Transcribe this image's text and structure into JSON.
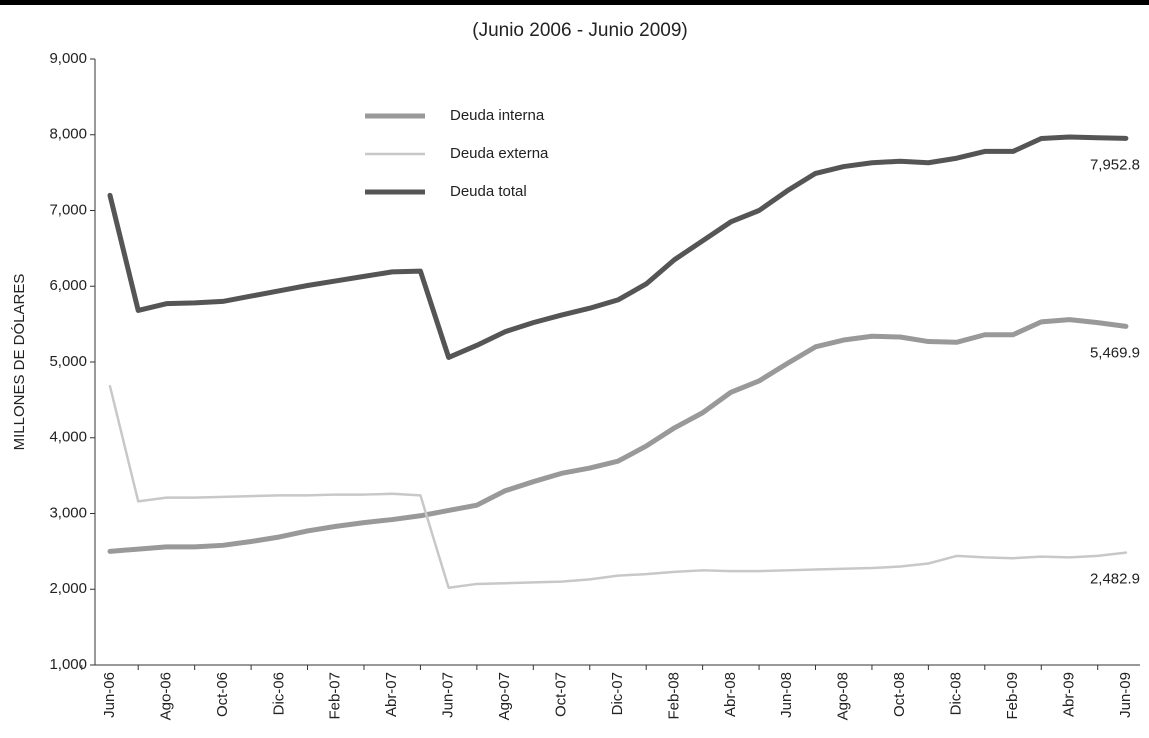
{
  "chart_data": {
    "type": "line",
    "subtitle": "(Junio 2006 - Junio 2009)",
    "y_label": "MILLONES DE DÓLARES",
    "categories": [
      "Jun-06",
      null,
      "Ago-06",
      null,
      "Oct-06",
      null,
      "Dic-06",
      null,
      "Feb-07",
      null,
      "Abr-07",
      null,
      "Jun-07",
      null,
      "Ago-07",
      null,
      "Oct-07",
      null,
      "Dic-07",
      null,
      "Feb-08",
      null,
      "Abr-08",
      null,
      "Jun-08",
      null,
      "Ago-08",
      null,
      "Oct-08",
      null,
      "Dic-08",
      null,
      "Feb-09",
      null,
      "Abr-09",
      null,
      "Jun-09"
    ],
    "series": [
      {
        "name": "Deuda interna",
        "color": "#999999",
        "width": 5,
        "values": [
          2500,
          2530,
          2560,
          2560,
          2580,
          2630,
          2690,
          2770,
          2830,
          2880,
          2920,
          2970,
          3040,
          3110,
          3300,
          3420,
          3530,
          3600,
          3690,
          3890,
          4130,
          4330,
          4600,
          4750,
          4980,
          5200,
          5290,
          5340,
          5330,
          5270,
          5260,
          5360,
          5360,
          5530,
          5560,
          5520,
          5469.9
        ],
        "value_labels": [
          null,
          null,
          null,
          null,
          null,
          null,
          null,
          null,
          null,
          null,
          null,
          null,
          null,
          null,
          null,
          null,
          null,
          null,
          null,
          null,
          null,
          null,
          null,
          null,
          null,
          null,
          null,
          null,
          null,
          null,
          null,
          null,
          null,
          null,
          null,
          null,
          "5,469.9"
        ]
      },
      {
        "name": "Deuda externa",
        "color": "#c8c8c8",
        "width": 2.5,
        "values": [
          4680,
          3160,
          3210,
          3210,
          3220,
          3230,
          3240,
          3240,
          3250,
          3250,
          3260,
          3240,
          2020,
          2070,
          2080,
          2090,
          2100,
          2130,
          2180,
          2200,
          2230,
          2250,
          2240,
          2240,
          2250,
          2260,
          2270,
          2280,
          2300,
          2340,
          2440,
          2420,
          2410,
          2430,
          2420,
          2440,
          2482.9
        ],
        "value_labels": [
          null,
          null,
          null,
          null,
          null,
          null,
          null,
          null,
          null,
          null,
          null,
          null,
          null,
          null,
          null,
          null,
          null,
          null,
          null,
          null,
          null,
          null,
          null,
          null,
          null,
          null,
          null,
          null,
          null,
          null,
          null,
          null,
          null,
          null,
          null,
          null,
          "2,482.9"
        ]
      },
      {
        "name": "Deuda total",
        "color": "#555555",
        "width": 5,
        "values": [
          7200,
          5680,
          5770,
          5780,
          5800,
          5870,
          5940,
          6010,
          6070,
          6130,
          6190,
          6200,
          5060,
          5220,
          5400,
          5520,
          5620,
          5710,
          5820,
          6030,
          6350,
          6600,
          6850,
          7000,
          7260,
          7490,
          7580,
          7630,
          7650,
          7630,
          7690,
          7780,
          7780,
          7950,
          7970,
          7960,
          7952.8
        ],
        "value_labels": [
          null,
          null,
          null,
          null,
          null,
          null,
          null,
          null,
          null,
          null,
          null,
          null,
          null,
          null,
          null,
          null,
          null,
          null,
          null,
          null,
          null,
          null,
          null,
          null,
          null,
          null,
          null,
          null,
          null,
          null,
          null,
          null,
          null,
          null,
          null,
          null,
          "7,952.8"
        ]
      }
    ],
    "ylim": [
      1000,
      9000
    ],
    "yticks": [
      {
        "value": 1000,
        "label": "1,000"
      },
      {
        "value": 2000,
        "label": "2,000"
      },
      {
        "value": 3000,
        "label": "3,000"
      },
      {
        "value": 4000,
        "label": "4,000"
      },
      {
        "value": 5000,
        "label": "5,000"
      },
      {
        "value": 6000,
        "label": "6,000"
      },
      {
        "value": 7000,
        "label": "7,000"
      },
      {
        "value": 8000,
        "label": "8,000"
      },
      {
        "value": 9000,
        "label": "9,000"
      }
    ],
    "grid": false
  }
}
